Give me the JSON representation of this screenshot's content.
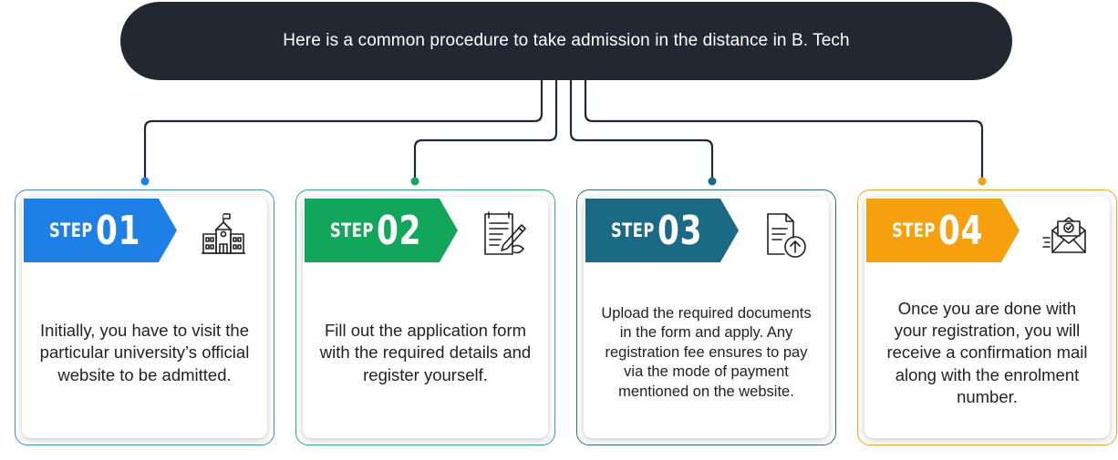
{
  "header": {
    "title": "Here is a common procedure to take admission in the distance in  B. Tech"
  },
  "colors": {
    "header_bg": "#222831",
    "step1": "#1e7fe6",
    "step2": "#12a65a",
    "step3": "#1b6a85",
    "step4": "#f5a00c"
  },
  "steps": [
    {
      "word": "STEP",
      "number": "01",
      "icon": "school-building-icon",
      "text": "Initially, you have to visit the particular university’s official website to be admitted."
    },
    {
      "word": "STEP",
      "number": "02",
      "icon": "application-form-pen-icon",
      "text": "Fill out the application form with the required details and register yourself."
    },
    {
      "word": "STEP",
      "number": "03",
      "icon": "document-upload-icon",
      "text": "Upload the required documents in the form and apply. Any registration fee ensures to pay via the mode of payment mentioned on the website."
    },
    {
      "word": "STEP",
      "number": "04",
      "icon": "confirmation-mail-icon",
      "text": "Once you are done with your registration, you will receive a confirmation mail along with the enrolment number."
    }
  ]
}
